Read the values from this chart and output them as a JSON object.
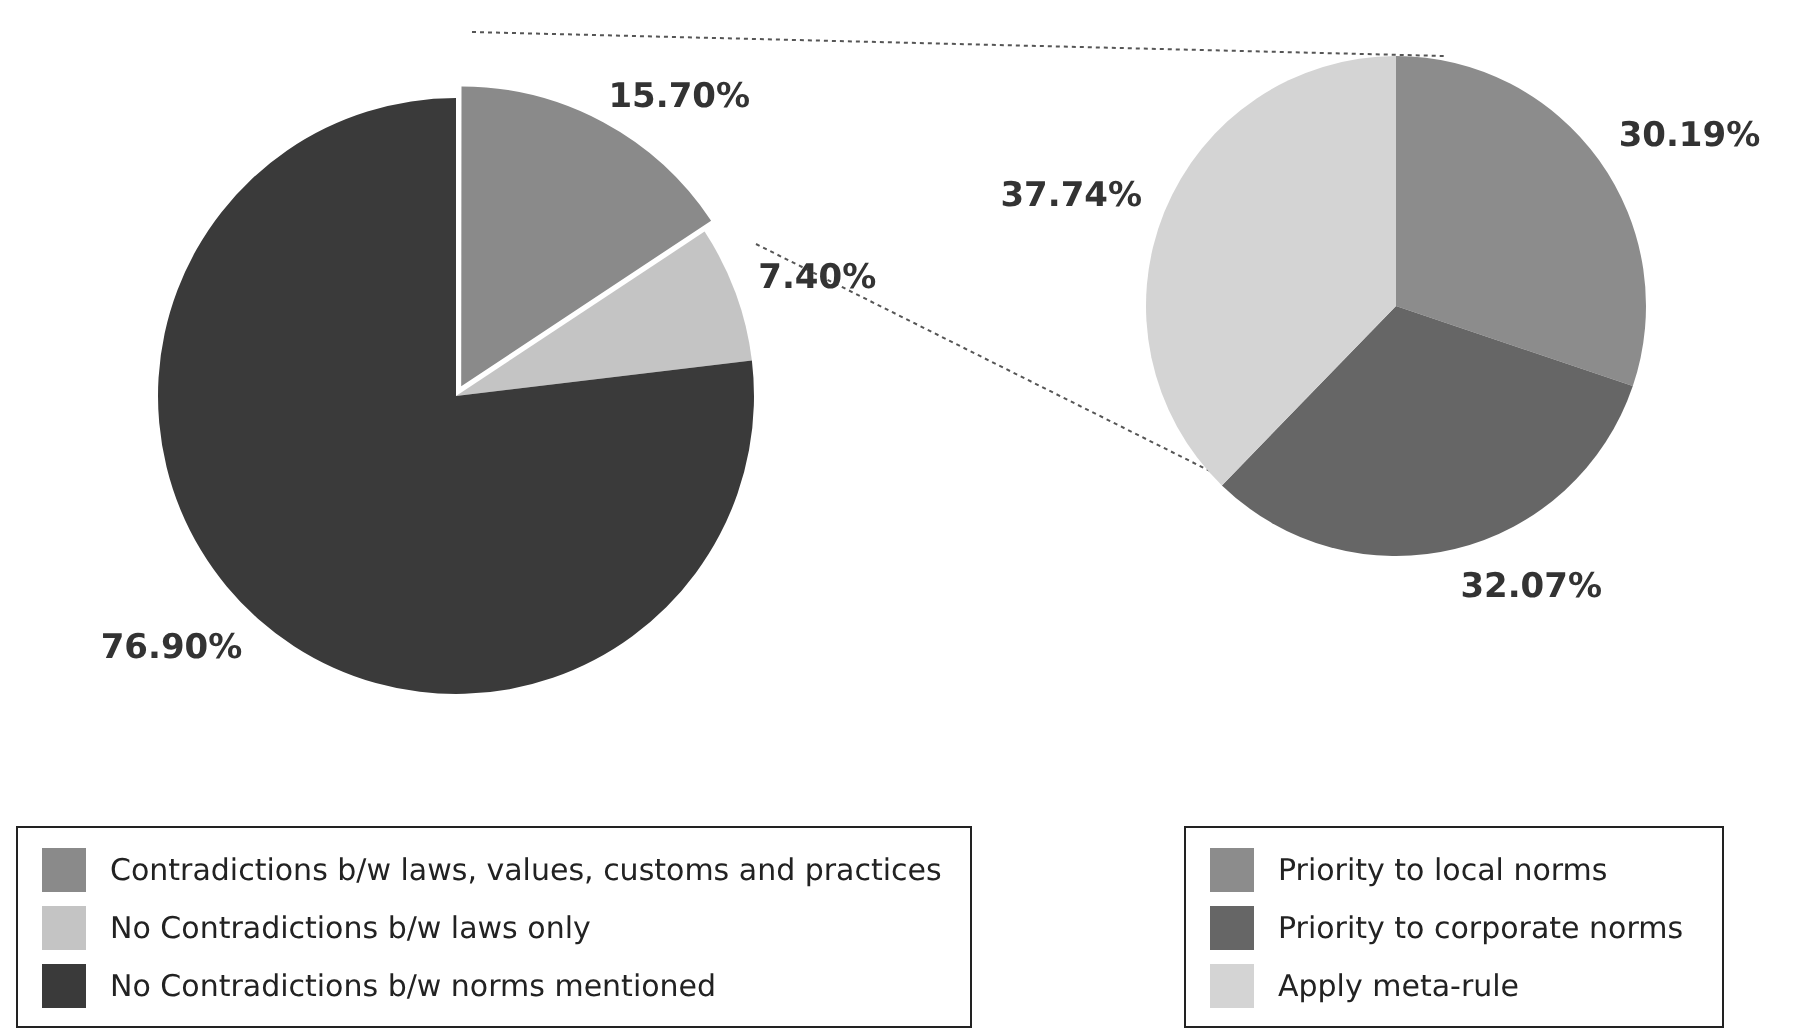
{
  "chart_data": [
    {
      "type": "pie",
      "categories": [
        "Contradictions b/w laws, values, customs and practices",
        "No Contradictions b/w laws only",
        "No Contradictions b/w norms mentioned"
      ],
      "values": [
        15.7,
        7.4,
        76.9
      ],
      "colors": [
        "#8a8a8a",
        "#c4c4c4",
        "#3a3a3a"
      ],
      "value_labels": [
        "15.70%",
        "7.40%",
        "76.90%"
      ],
      "legend": "bottom"
    },
    {
      "type": "pie",
      "categories": [
        "Priority to local norms",
        "Priority to corporate norms",
        "Apply meta-rule"
      ],
      "values": [
        30.19,
        32.07,
        37.74
      ],
      "colors": [
        "#8c8c8c",
        "#666666",
        "#d4d4d4"
      ],
      "value_labels": [
        "30.19%",
        "32.07%",
        "37.74%"
      ],
      "legend": "bottom"
    }
  ]
}
